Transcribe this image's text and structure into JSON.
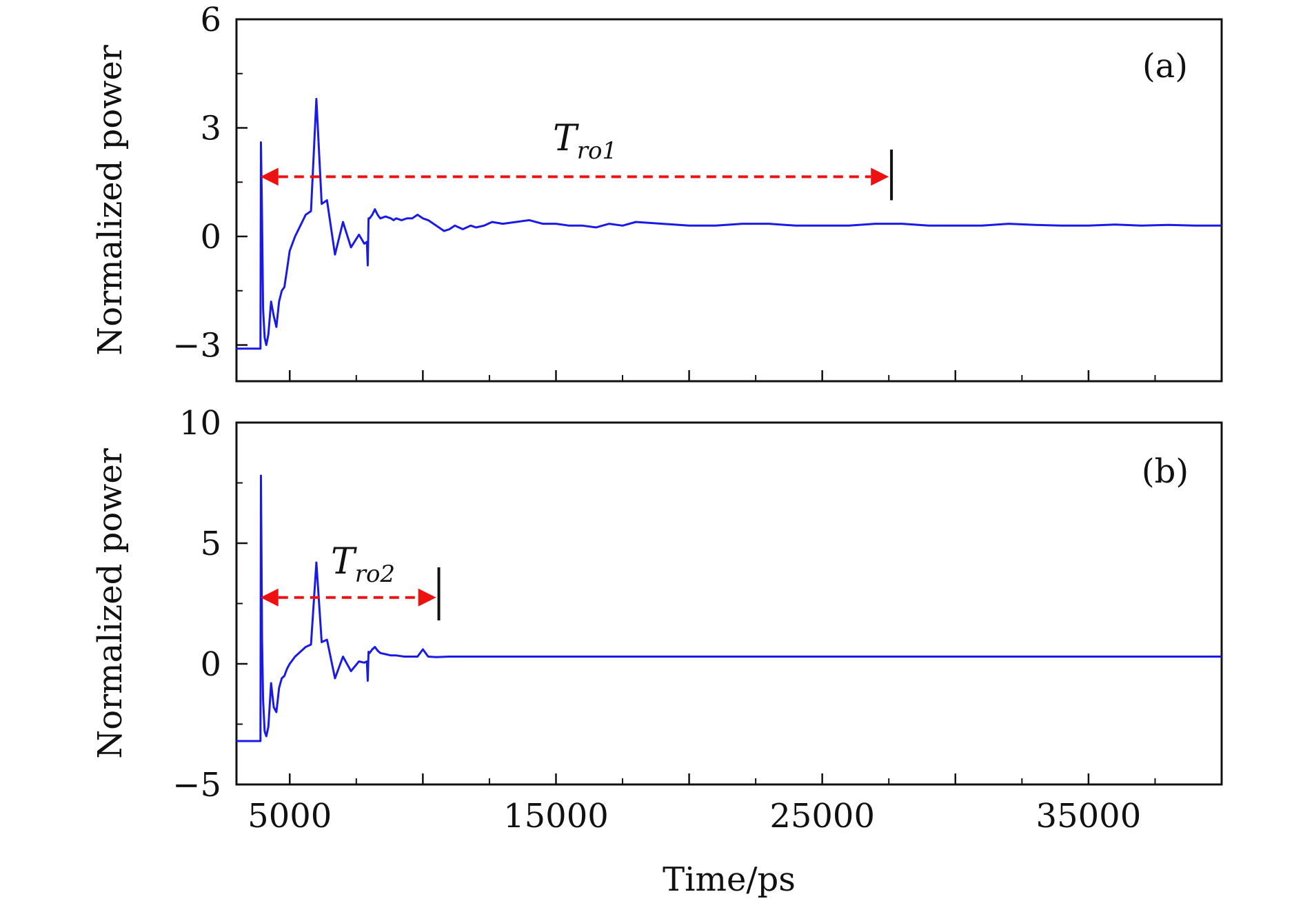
{
  "chart_data": [
    {
      "type": "line",
      "panel_label": "(a)",
      "ylabel": "Normalized power",
      "xlabel": "",
      "xlim": [
        3000,
        40000
      ],
      "ylim": [
        -4,
        6
      ],
      "x_ticks_major": [
        5000,
        10000,
        15000,
        20000,
        25000,
        30000,
        35000
      ],
      "x_ticks_minor": [
        7500,
        12500,
        17500,
        22500,
        27500,
        32500,
        37500
      ],
      "x_tick_labels": [],
      "y_ticks_major": [
        -3,
        0,
        3,
        6
      ],
      "y_ticks_minor": [
        -1.5,
        1.5,
        4.5
      ],
      "y_tick_labels": [
        "−3",
        "0",
        "3",
        "6"
      ],
      "grid": false,
      "color": "#1a1ae6",
      "series": [
        {
          "x": [
            3000,
            3900,
            3920,
            3960,
            4000,
            4060,
            4120,
            4200,
            4300,
            4400,
            4500,
            4600,
            4700,
            4800,
            4900,
            5000,
            5200,
            5400,
            5600,
            5800,
            6000,
            6200,
            6400,
            6700,
            7000,
            7300,
            7600,
            7800,
            7900,
            7930,
            7960,
            8000,
            8100,
            8200,
            8300,
            8400,
            8600,
            8800,
            8900,
            9000,
            9200,
            9400,
            9600,
            9800,
            10000,
            10200,
            10500,
            10800,
            11000,
            11200,
            11500,
            11800,
            12000,
            12300,
            12600,
            13000,
            13500,
            14000,
            14500,
            15000,
            15500,
            16000,
            16500,
            17000,
            17500,
            18000,
            19000,
            20000,
            21000,
            22000,
            23000,
            24000,
            25000,
            26000,
            27000,
            28000,
            29000,
            30000,
            31000,
            32000,
            33000,
            34000,
            35000,
            36000,
            37000,
            38000,
            39000,
            40000
          ],
          "y": [
            -3.1,
            -3.1,
            2.6,
            0.5,
            -2.0,
            -2.8,
            -3.0,
            -2.7,
            -1.8,
            -2.2,
            -2.5,
            -1.8,
            -1.5,
            -1.4,
            -0.9,
            -0.4,
            0.0,
            0.3,
            0.6,
            0.7,
            3.8,
            0.9,
            1.0,
            -0.5,
            0.4,
            -0.3,
            0.05,
            -0.2,
            -0.15,
            -0.8,
            0.5,
            0.5,
            0.6,
            0.75,
            0.6,
            0.5,
            0.55,
            0.5,
            0.45,
            0.5,
            0.45,
            0.5,
            0.5,
            0.6,
            0.5,
            0.45,
            0.3,
            0.15,
            0.2,
            0.3,
            0.2,
            0.3,
            0.25,
            0.3,
            0.4,
            0.35,
            0.4,
            0.45,
            0.35,
            0.35,
            0.3,
            0.3,
            0.25,
            0.35,
            0.3,
            0.4,
            0.35,
            0.3,
            0.3,
            0.35,
            0.35,
            0.3,
            0.3,
            0.3,
            0.35,
            0.35,
            0.3,
            0.3,
            0.3,
            0.35,
            0.32,
            0.3,
            0.3,
            0.33,
            0.3,
            0.32,
            0.3,
            0.3
          ]
        }
      ],
      "annotation": {
        "symbol": "T",
        "subscript": "ro1",
        "x_start": 3900,
        "x_end": 27500,
        "y": 1.65,
        "marker_x": 27600,
        "marker_y_range": [
          1.0,
          2.4
        ],
        "arrow_color": "#ee1111"
      }
    },
    {
      "type": "line",
      "panel_label": "(b)",
      "ylabel": "Normalized power",
      "xlabel": "Time/ps",
      "xlim": [
        3000,
        40000
      ],
      "ylim": [
        -5,
        10
      ],
      "x_ticks_major": [
        5000,
        10000,
        15000,
        20000,
        25000,
        30000,
        35000
      ],
      "x_ticks_minor": [
        7500,
        12500,
        17500,
        22500,
        27500,
        32500,
        37500
      ],
      "x_tick_labels": [
        "5000",
        "15000",
        "25000",
        "35000"
      ],
      "x_tick_label_values": [
        5000,
        15000,
        25000,
        35000
      ],
      "y_ticks_major": [
        -5,
        0,
        5,
        10
      ],
      "y_ticks_minor": [
        -2.5,
        2.5,
        7.5
      ],
      "y_tick_labels": [
        "−5",
        "0",
        "5",
        "10"
      ],
      "grid": false,
      "color": "#1a1ae6",
      "series": [
        {
          "x": [
            3000,
            3900,
            3920,
            3960,
            4000,
            4060,
            4120,
            4200,
            4300,
            4400,
            4500,
            4600,
            4700,
            4800,
            4900,
            5000,
            5200,
            5400,
            5600,
            5800,
            6000,
            6200,
            6400,
            6700,
            7000,
            7300,
            7600,
            7800,
            7900,
            7930,
            7960,
            8000,
            8100,
            8200,
            8300,
            8400,
            8600,
            8800,
            9000,
            9300,
            9600,
            9800,
            10000,
            10200,
            10500,
            11000,
            11500,
            12000,
            13000,
            14000,
            15000,
            17000,
            20000,
            25000,
            30000,
            35000,
            40000
          ],
          "y": [
            -3.2,
            -3.2,
            7.8,
            1.0,
            -1.5,
            -2.8,
            -3.0,
            -2.6,
            -0.8,
            -1.8,
            -2.0,
            -1.0,
            -0.6,
            -0.5,
            -0.2,
            0.0,
            0.3,
            0.5,
            0.7,
            0.8,
            4.2,
            0.9,
            1.0,
            -0.6,
            0.3,
            -0.3,
            0.1,
            0.05,
            0.1,
            -0.7,
            0.5,
            0.45,
            0.6,
            0.7,
            0.55,
            0.45,
            0.4,
            0.35,
            0.35,
            0.3,
            0.3,
            0.3,
            0.6,
            0.3,
            0.28,
            0.3,
            0.3,
            0.3,
            0.3,
            0.3,
            0.3,
            0.3,
            0.3,
            0.3,
            0.3,
            0.3,
            0.3
          ]
        }
      ],
      "annotation": {
        "symbol": "T",
        "subscript": "ro2",
        "x_start": 3900,
        "x_end": 10500,
        "y": 2.75,
        "marker_x": 10600,
        "marker_y_range": [
          1.8,
          4.0
        ],
        "arrow_color": "#ee1111"
      }
    }
  ]
}
